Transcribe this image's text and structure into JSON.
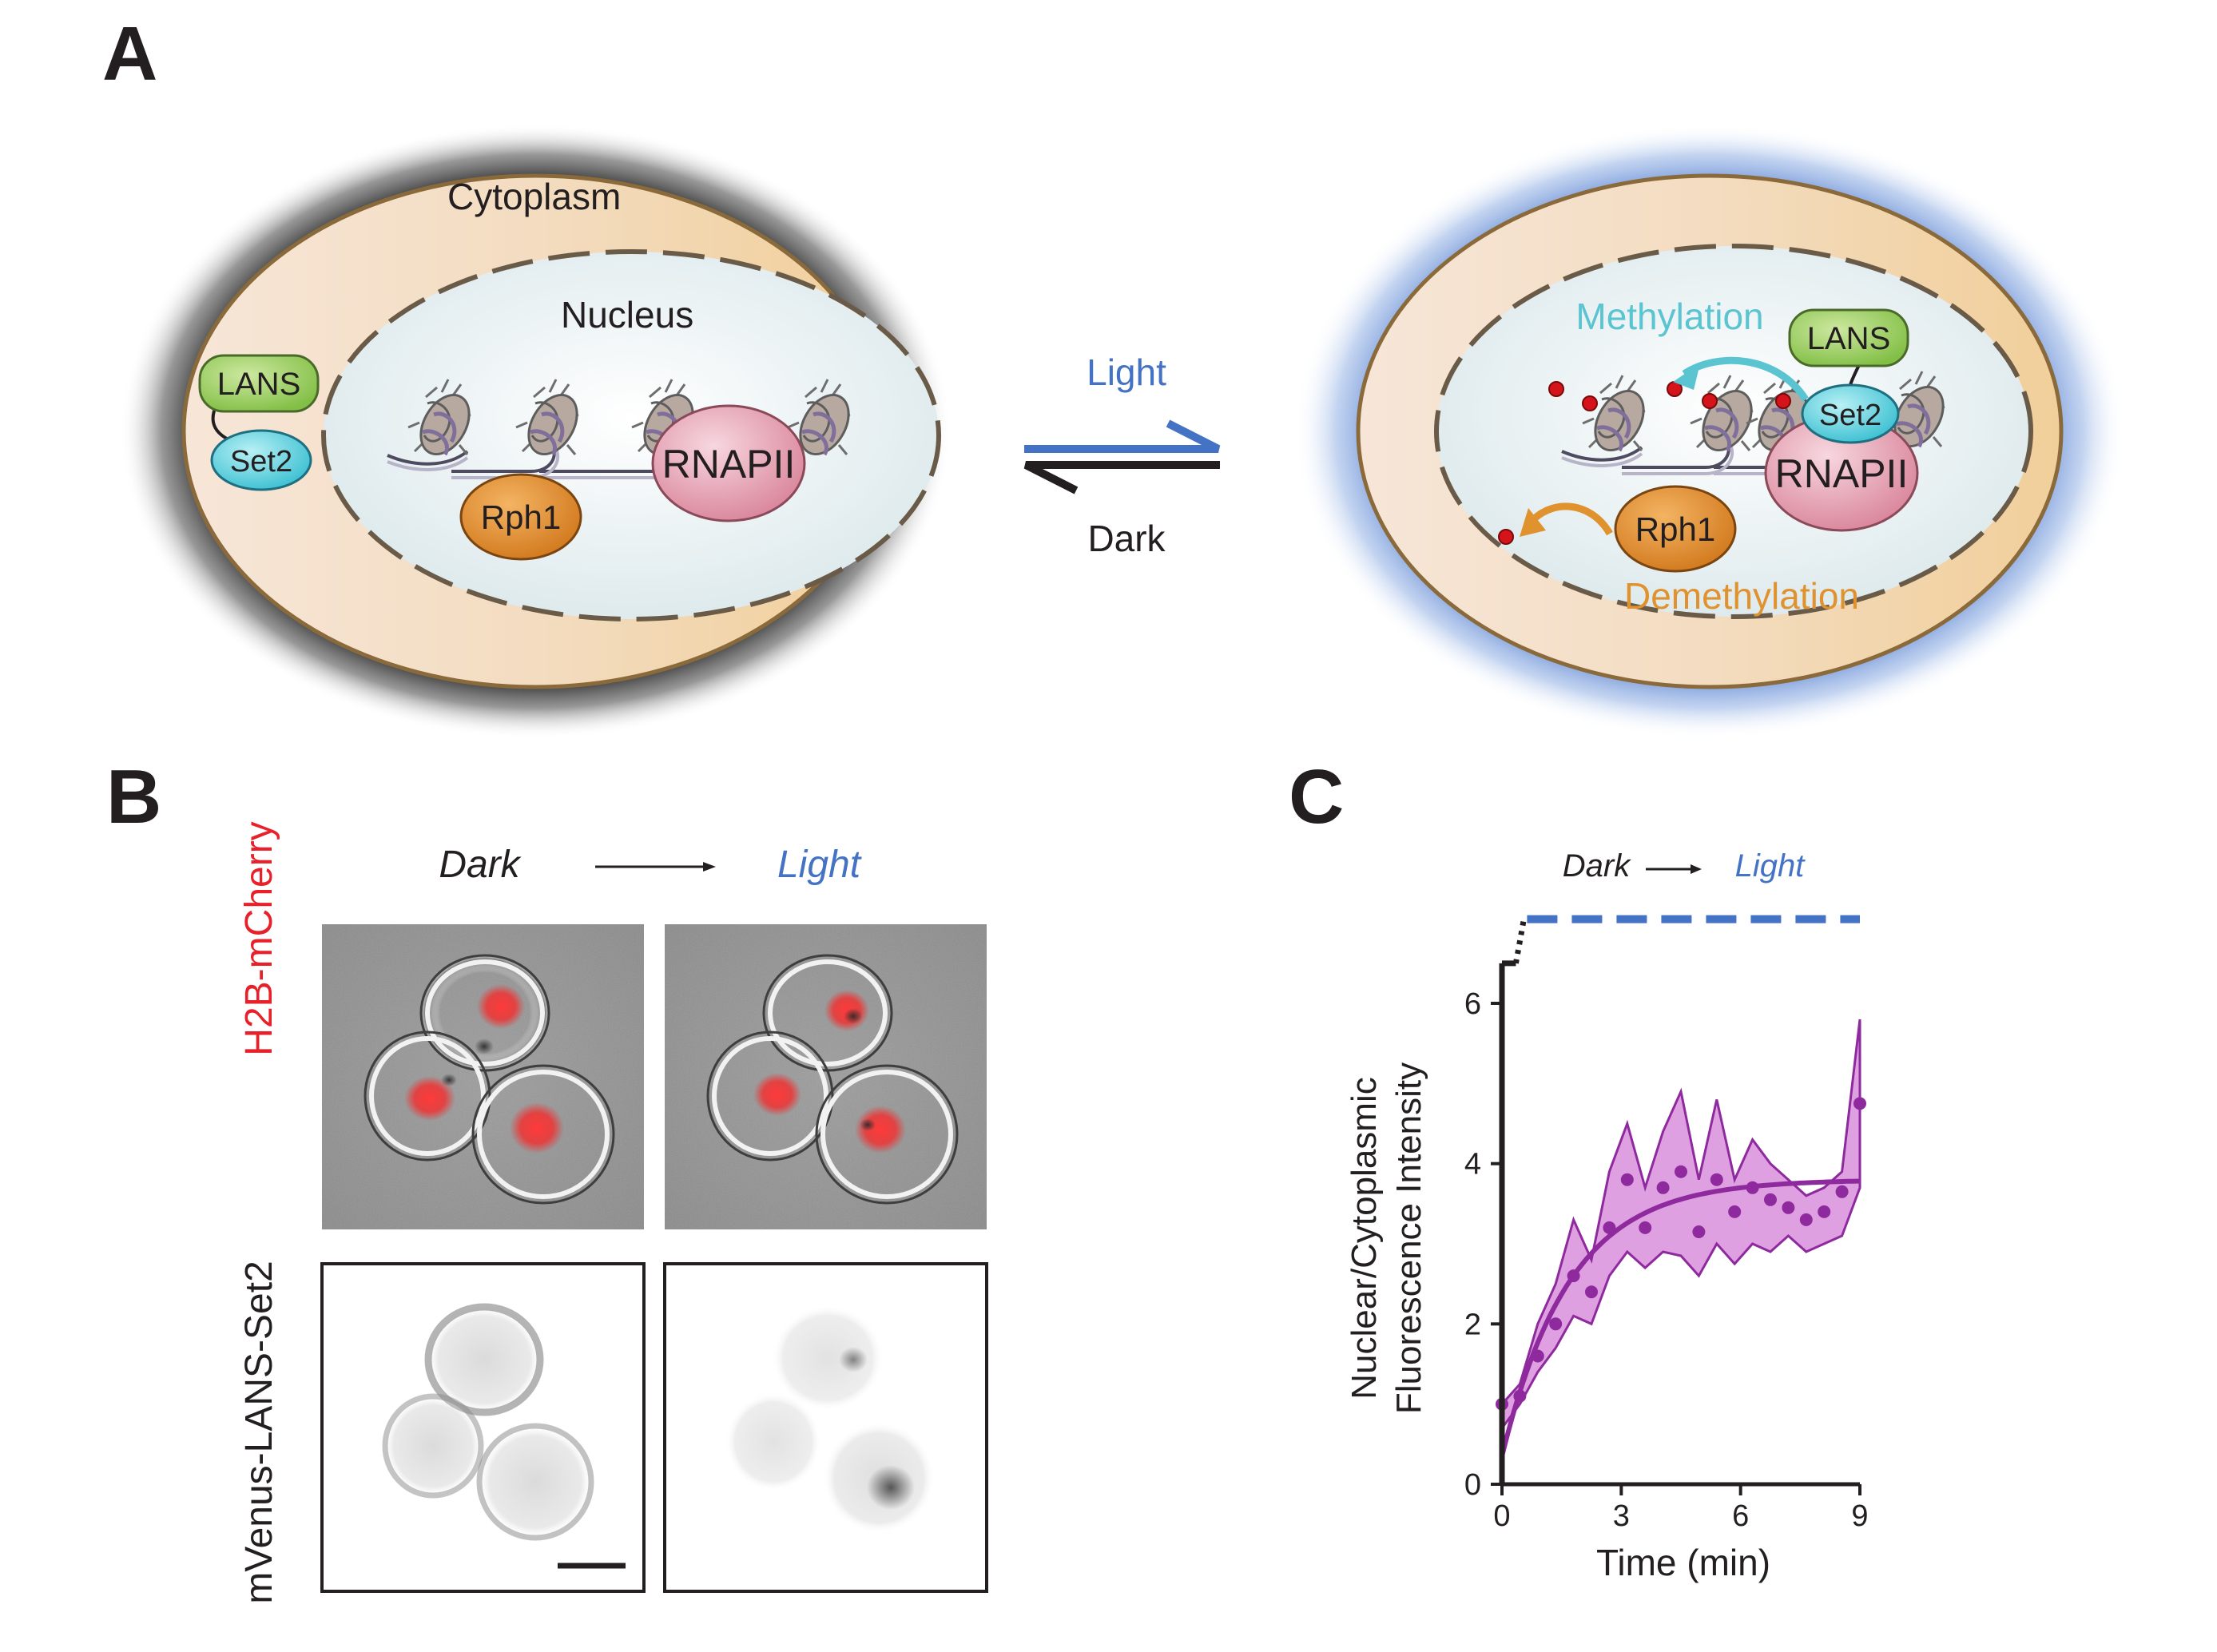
{
  "panels": {
    "a": "A",
    "b": "B",
    "c": "C"
  },
  "panel_a": {
    "left_cell": {
      "cytoplasm_label": "Cytoplasm",
      "nucleus_label": "Nucleus",
      "lans": "LANS",
      "set2": "Set2",
      "rph1": "Rph1",
      "rnapii": "RNAPII"
    },
    "arrows": {
      "forward_label": "Light",
      "reverse_label": "Dark"
    },
    "right_cell": {
      "methylation": "Methylation",
      "demethylation": "Demethylation",
      "lans": "LANS",
      "set2": "Set2",
      "rph1": "Rph1",
      "rnapii": "RNAPII"
    }
  },
  "panel_b": {
    "header_dark": "Dark",
    "header_light": "Light",
    "row1_label": "H2B-mCherry",
    "row2_label": "mVenus-LANS-Set2"
  },
  "colors": {
    "light_blue": "#4472c4",
    "methylation_cyan": "#5bc4d1",
    "demethylation_orange": "#e0922f",
    "mcherry_red": "#e8202a",
    "trace_purple": "#8e2a9e",
    "band_pink": "#d98fdc"
  },
  "chart_data": {
    "type": "line",
    "header_dark": "Dark",
    "header_light": "Light",
    "xlabel": "Time (min)",
    "ylabel_line1": "Nuclear/Cytoplasmic",
    "ylabel_line2": "Fluorescence Intensity",
    "xlim": [
      0,
      9
    ],
    "ylim": [
      0,
      6.5
    ],
    "xticks": [
      0,
      3,
      6,
      9
    ],
    "yticks": [
      0,
      2,
      4,
      6
    ],
    "points": {
      "x": [
        0,
        0.45,
        0.9,
        1.35,
        1.8,
        2.25,
        2.7,
        3.15,
        3.6,
        4.05,
        4.5,
        4.95,
        5.4,
        5.85,
        6.3,
        6.75,
        7.2,
        7.65,
        8.1,
        8.55,
        9.0
      ],
      "y": [
        1.0,
        1.1,
        1.6,
        2.0,
        2.6,
        2.4,
        3.2,
        3.8,
        3.2,
        3.7,
        3.9,
        3.15,
        3.8,
        3.4,
        3.7,
        3.55,
        3.45,
        3.3,
        3.4,
        3.65,
        4.75
      ]
    },
    "band": {
      "upper": [
        1.0,
        1.25,
        2.0,
        2.5,
        3.3,
        2.8,
        3.9,
        4.5,
        3.7,
        4.4,
        4.9,
        3.8,
        4.8,
        3.8,
        4.3,
        4.0,
        3.8,
        3.6,
        3.7,
        3.9,
        5.8
      ],
      "lower": [
        0.7,
        1.0,
        1.4,
        1.7,
        2.1,
        2.0,
        2.6,
        2.9,
        2.7,
        2.9,
        2.85,
        2.6,
        3.0,
        2.75,
        3.0,
        2.9,
        3.1,
        2.9,
        3.0,
        3.1,
        3.7
      ]
    },
    "fit": {
      "plateau": 3.8,
      "start": 0.35,
      "tau": 1.7
    },
    "light_series": {
      "start_x": 0.35,
      "level": 7.05
    },
    "dark_series": {
      "level": 6.5
    }
  }
}
